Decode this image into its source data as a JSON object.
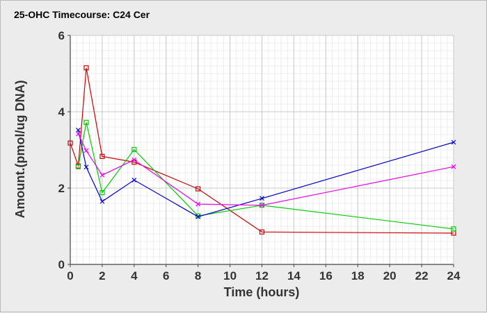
{
  "chart_data": {
    "type": "line",
    "title": "25-OHC Timecourse: C24 Cer",
    "xlabel": "Time (hours)",
    "ylabel": "Amount.(pmol/ug DNA)",
    "xlim": [
      0,
      24
    ],
    "ylim": [
      0,
      6
    ],
    "xticks": [
      "0",
      "2",
      "4",
      "6",
      "8",
      "10",
      "12",
      "14",
      "16",
      "18",
      "20",
      "22",
      "24"
    ],
    "yticks": [
      "0",
      "2",
      "4",
      "6"
    ],
    "grid": true,
    "series": [
      {
        "color": "#cc0000",
        "marker": "square",
        "x": [
          0,
          0.5,
          1,
          2,
          4,
          8,
          12,
          24
        ],
        "y": [
          3.18,
          2.58,
          5.15,
          2.83,
          2.68,
          1.98,
          0.85,
          0.82
        ]
      },
      {
        "color": "#00cc00",
        "marker": "square",
        "x": [
          0.5,
          1,
          2,
          4,
          8,
          12,
          24
        ],
        "y": [
          2.56,
          3.72,
          1.88,
          3.01,
          1.27,
          1.55,
          0.93
        ]
      },
      {
        "color": "#0000cc",
        "marker": "x",
        "x": [
          0.5,
          1,
          2,
          4,
          8,
          12,
          24
        ],
        "y": [
          3.52,
          2.55,
          1.65,
          2.21,
          1.25,
          1.73,
          3.2
        ]
      },
      {
        "color": "#ee00ee",
        "marker": "x",
        "x": [
          0.5,
          1,
          2,
          4,
          8,
          12,
          24
        ],
        "y": [
          3.42,
          2.98,
          2.34,
          2.74,
          1.58,
          1.55,
          2.56
        ]
      }
    ]
  }
}
